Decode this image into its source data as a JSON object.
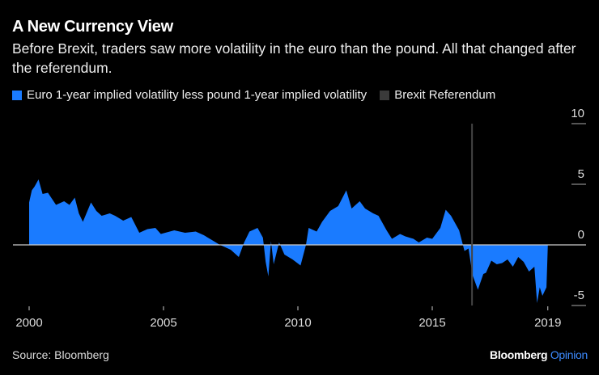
{
  "title": "A New Currency View",
  "subtitle": "Before Brexit, traders saw more volatility in the euro than the pound. All that changed after the referendum.",
  "source": "Source: Bloomberg",
  "brand": {
    "name": "Bloomberg",
    "suffix": "Opinion"
  },
  "colors": {
    "series": "#1a7bff",
    "brexit": "#3a3a3a",
    "background": "#000000"
  },
  "chart_data": {
    "type": "area",
    "ylim": [
      -5,
      10
    ],
    "yticks": [
      10,
      5,
      0,
      -5
    ],
    "xticks": [
      {
        "label": "2000",
        "x": 2000
      },
      {
        "label": "2005",
        "x": 2005
      },
      {
        "label": "2010",
        "x": 2010
      },
      {
        "label": "2015",
        "x": 2015
      },
      {
        "label": "2019",
        "x": 2019.3
      }
    ],
    "xlim": [
      2000,
      2019.3
    ],
    "grid": "horizontal",
    "legend_position": "top-left",
    "series": [
      {
        "name": "Euro 1-year implied volatility less pound 1-year implied volatility",
        "x": [
          2000,
          2000.1,
          2000.2,
          2000.35,
          2000.5,
          2000.7,
          2001,
          2001.3,
          2001.5,
          2001.7,
          2001.85,
          2002,
          2002.3,
          2002.5,
          2002.7,
          2003,
          2003.2,
          2003.5,
          2003.8,
          2004.1,
          2004.4,
          2004.7,
          2004.9,
          2005.4,
          2005.8,
          2006.2,
          2006.5,
          2006.8,
          2007.1,
          2007.3,
          2007.5,
          2007.8,
          2008,
          2008.2,
          2008.5,
          2008.7,
          2008.8,
          2008.9,
          2009,
          2009.1,
          2009.3,
          2009.5,
          2009.8,
          2010.1,
          2010.3,
          2010.4,
          2010.7,
          2010.9,
          2011.2,
          2011.5,
          2011.8,
          2012,
          2012.3,
          2012.5,
          2012.8,
          2013,
          2013.3,
          2013.5,
          2013.8,
          2014,
          2014.3,
          2014.5,
          2014.8,
          2015,
          2015.3,
          2015.5,
          2015.7,
          2016,
          2016.2,
          2016.35,
          2016.5,
          2016.7,
          2016.9,
          2017,
          2017.2,
          2017.4,
          2017.6,
          2017.8,
          2018,
          2018.2,
          2018.4,
          2018.6,
          2018.8,
          2018.9,
          2019,
          2019.1,
          2019.25,
          2019.3
        ],
        "y": [
          3.5,
          4.5,
          4.8,
          5.4,
          4.2,
          4.3,
          3.3,
          3.6,
          3.3,
          3.9,
          2.6,
          1.9,
          3.5,
          2.8,
          2.4,
          2.6,
          2.4,
          2.0,
          2.3,
          1.0,
          1.3,
          1.4,
          0.9,
          1.2,
          1.0,
          1.1,
          0.8,
          0.4,
          0.0,
          -0.2,
          -0.4,
          -1.0,
          0.2,
          1.1,
          1.4,
          0.6,
          -1.4,
          -2.6,
          0.3,
          -1.6,
          0.2,
          -0.8,
          -1.2,
          -1.7,
          0.0,
          1.4,
          1.1,
          1.9,
          2.8,
          3.2,
          4.5,
          3.0,
          3.6,
          3.0,
          2.6,
          2.4,
          1.2,
          0.5,
          0.9,
          0.7,
          0.5,
          0.2,
          0.6,
          0.5,
          1.4,
          2.9,
          2.4,
          1.2,
          -0.5,
          -0.3,
          -2.5,
          -3.7,
          -2.4,
          -2.3,
          -1.3,
          -1.6,
          -1.5,
          -1.2,
          -1.8,
          -1.0,
          -1.4,
          -2.2,
          -1.8,
          -4.8,
          -3.5,
          -4.2,
          -3.5,
          0
        ]
      }
    ],
    "annotations": [
      {
        "name": "Brexit Referendum",
        "x": 2016.48
      }
    ]
  }
}
